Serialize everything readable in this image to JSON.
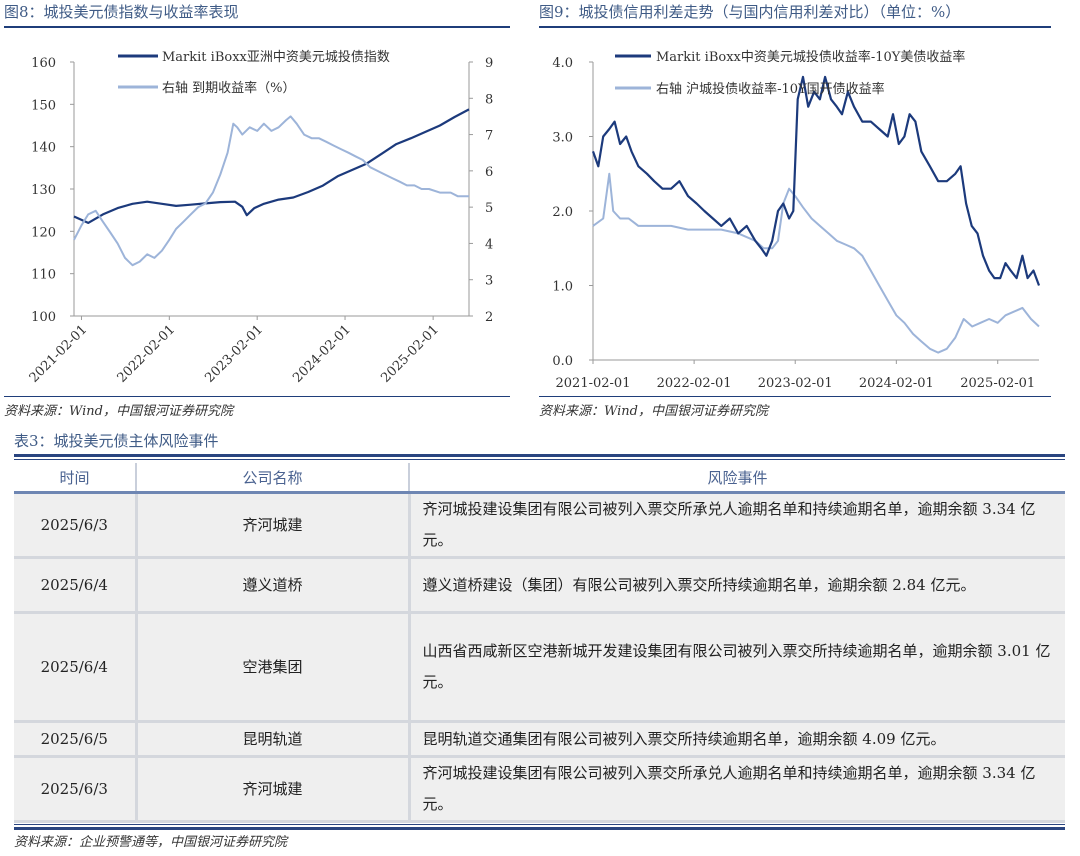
{
  "fig8": {
    "title": "图8：城投美元债指数与收益率表现",
    "source": "资料来源：Wind，中国银河证券研究院"
  },
  "fig9": {
    "title": "图9：城投债信用利差走势（与国内信用利差对比）（单位：%）",
    "source": "资料来源：Wind，中国银河证券研究院"
  },
  "chart_data": [
    {
      "type": "line",
      "x_ticks": [
        "2021-02-01",
        "2022-02-01",
        "2023-02-01",
        "2024-02-01",
        "2025-02-01"
      ],
      "y_left_ticks": [
        "160",
        "150",
        "140",
        "130",
        "120",
        "110",
        "100"
      ],
      "y_right_ticks": [
        "9",
        "8",
        "7",
        "6",
        "5",
        "4",
        "3",
        "2"
      ],
      "ylim_left": [
        100,
        160
      ],
      "ylim_right": [
        2,
        9
      ],
      "x_range": [
        "2021-01-01",
        "2025-06-30"
      ],
      "legend_position": "top-left",
      "grid": false,
      "series": [
        {
          "name": "Markit iBoxx亚洲中资美元城投债指数",
          "axis": "left",
          "color": "#1c3a7c",
          "points": [
            [
              "2021-01-01",
              123.5
            ],
            [
              "2021-03-01",
              122.0
            ],
            [
              "2021-05-01",
              124.0
            ],
            [
              "2021-07-01",
              125.5
            ],
            [
              "2021-09-01",
              126.5
            ],
            [
              "2021-11-01",
              127.0
            ],
            [
              "2022-01-01",
              126.5
            ],
            [
              "2022-03-01",
              126.0
            ],
            [
              "2022-05-01",
              126.3
            ],
            [
              "2022-07-01",
              126.6
            ],
            [
              "2022-09-01",
              126.9
            ],
            [
              "2022-11-01",
              127.0
            ],
            [
              "2022-12-01",
              125.8
            ],
            [
              "2022-12-20",
              123.8
            ],
            [
              "2023-01-20",
              125.5
            ],
            [
              "2023-03-01",
              126.5
            ],
            [
              "2023-05-01",
              127.5
            ],
            [
              "2023-07-01",
              128.0
            ],
            [
              "2023-09-01",
              129.3
            ],
            [
              "2023-11-01",
              130.8
            ],
            [
              "2024-01-01",
              133.0
            ],
            [
              "2024-03-01",
              134.5
            ],
            [
              "2024-05-01",
              136.0
            ],
            [
              "2024-07-01",
              138.3
            ],
            [
              "2024-09-01",
              140.6
            ],
            [
              "2024-11-01",
              142.0
            ],
            [
              "2025-01-01",
              143.5
            ],
            [
              "2025-03-01",
              145.0
            ],
            [
              "2025-05-01",
              147.0
            ],
            [
              "2025-06-30",
              148.8
            ]
          ]
        },
        {
          "name": "右轴 到期收益率（%）",
          "axis": "right",
          "color": "#9db4d9",
          "points": [
            [
              "2021-01-01",
              4.1
            ],
            [
              "2021-02-01",
              4.5
            ],
            [
              "2021-03-01",
              4.8
            ],
            [
              "2021-04-01",
              4.9
            ],
            [
              "2021-05-01",
              4.6
            ],
            [
              "2021-06-01",
              4.3
            ],
            [
              "2021-07-01",
              4.0
            ],
            [
              "2021-08-01",
              3.6
            ],
            [
              "2021-09-01",
              3.4
            ],
            [
              "2021-10-01",
              3.5
            ],
            [
              "2021-11-01",
              3.7
            ],
            [
              "2021-12-01",
              3.6
            ],
            [
              "2022-01-01",
              3.8
            ],
            [
              "2022-02-01",
              4.1
            ],
            [
              "2022-03-01",
              4.4
            ],
            [
              "2022-04-01",
              4.6
            ],
            [
              "2022-05-01",
              4.8
            ],
            [
              "2022-06-01",
              5.0
            ],
            [
              "2022-07-01",
              5.1
            ],
            [
              "2022-08-01",
              5.4
            ],
            [
              "2022-09-01",
              5.9
            ],
            [
              "2022-10-01",
              6.5
            ],
            [
              "2022-10-25",
              7.3
            ],
            [
              "2022-11-10",
              7.2
            ],
            [
              "2022-12-01",
              7.0
            ],
            [
              "2023-01-01",
              7.2
            ],
            [
              "2023-02-01",
              7.1
            ],
            [
              "2023-03-01",
              7.3
            ],
            [
              "2023-04-01",
              7.1
            ],
            [
              "2023-05-01",
              7.2
            ],
            [
              "2023-06-01",
              7.4
            ],
            [
              "2023-06-20",
              7.5
            ],
            [
              "2023-07-15",
              7.3
            ],
            [
              "2023-08-15",
              7.0
            ],
            [
              "2023-09-15",
              6.9
            ],
            [
              "2023-10-15",
              6.9
            ],
            [
              "2023-11-15",
              6.8
            ],
            [
              "2023-12-15",
              6.7
            ],
            [
              "2024-01-15",
              6.6
            ],
            [
              "2024-02-15",
              6.5
            ],
            [
              "2024-03-15",
              6.4
            ],
            [
              "2024-04-15",
              6.3
            ],
            [
              "2024-05-15",
              6.1
            ],
            [
              "2024-06-15",
              6.0
            ],
            [
              "2024-07-15",
              5.9
            ],
            [
              "2024-08-15",
              5.8
            ],
            [
              "2024-09-15",
              5.7
            ],
            [
              "2024-10-15",
              5.6
            ],
            [
              "2024-11-15",
              5.6
            ],
            [
              "2024-12-15",
              5.5
            ],
            [
              "2025-01-15",
              5.5
            ],
            [
              "2025-03-01",
              5.4
            ],
            [
              "2025-04-15",
              5.4
            ],
            [
              "2025-05-15",
              5.3
            ],
            [
              "2025-06-30",
              5.3
            ]
          ]
        }
      ]
    },
    {
      "type": "line",
      "x_ticks": [
        "2021-02-01",
        "2022-02-01",
        "2023-02-01",
        "2024-02-01",
        "2025-02-01"
      ],
      "y_ticks": [
        "4.0",
        "3.0",
        "2.0",
        "1.0",
        "0.0"
      ],
      "ylim": [
        0,
        4
      ],
      "x_range": [
        "2021-02-01",
        "2025-06-30"
      ],
      "legend_position": "top-left",
      "grid": false,
      "series": [
        {
          "name": "Markit iBoxx中资美元城投债收益率-10Y美债收益率",
          "color": "#1c3a7c",
          "points": [
            [
              "2021-02-01",
              2.8
            ],
            [
              "2021-02-20",
              2.6
            ],
            [
              "2021-03-10",
              3.0
            ],
            [
              "2021-04-01",
              3.1
            ],
            [
              "2021-04-20",
              3.2
            ],
            [
              "2021-05-10",
              2.9
            ],
            [
              "2021-06-01",
              3.0
            ],
            [
              "2021-06-20",
              2.8
            ],
            [
              "2021-07-15",
              2.6
            ],
            [
              "2021-08-15",
              2.5
            ],
            [
              "2021-09-10",
              2.4
            ],
            [
              "2021-10-10",
              2.3
            ],
            [
              "2021-11-10",
              2.3
            ],
            [
              "2021-12-10",
              2.4
            ],
            [
              "2022-01-10",
              2.2
            ],
            [
              "2022-02-10",
              2.1
            ],
            [
              "2022-03-10",
              2.0
            ],
            [
              "2022-04-10",
              1.9
            ],
            [
              "2022-05-10",
              1.8
            ],
            [
              "2022-06-10",
              1.9
            ],
            [
              "2022-07-10",
              1.7
            ],
            [
              "2022-08-10",
              1.8
            ],
            [
              "2022-09-10",
              1.6
            ],
            [
              "2022-10-01",
              1.5
            ],
            [
              "2022-10-20",
              1.4
            ],
            [
              "2022-11-10",
              1.6
            ],
            [
              "2022-12-01",
              2.0
            ],
            [
              "2022-12-20",
              2.1
            ],
            [
              "2023-01-10",
              1.9
            ],
            [
              "2023-01-25",
              2.0
            ],
            [
              "2023-02-10",
              3.5
            ],
            [
              "2023-03-01",
              3.8
            ],
            [
              "2023-03-20",
              3.4
            ],
            [
              "2023-04-10",
              3.6
            ],
            [
              "2023-05-01",
              3.5
            ],
            [
              "2023-05-20",
              3.8
            ],
            [
              "2023-06-10",
              3.5
            ],
            [
              "2023-07-01",
              3.4
            ],
            [
              "2023-07-20",
              3.3
            ],
            [
              "2023-08-10",
              3.6
            ],
            [
              "2023-09-01",
              3.4
            ],
            [
              "2023-10-01",
              3.2
            ],
            [
              "2023-11-01",
              3.2
            ],
            [
              "2023-12-01",
              3.1
            ],
            [
              "2024-01-01",
              3.0
            ],
            [
              "2024-01-20",
              3.3
            ],
            [
              "2024-02-10",
              2.9
            ],
            [
              "2024-03-01",
              3.0
            ],
            [
              "2024-03-20",
              3.3
            ],
            [
              "2024-04-10",
              3.2
            ],
            [
              "2024-05-01",
              2.8
            ],
            [
              "2024-06-01",
              2.6
            ],
            [
              "2024-07-01",
              2.4
            ],
            [
              "2024-08-01",
              2.4
            ],
            [
              "2024-09-01",
              2.5
            ],
            [
              "2024-09-20",
              2.6
            ],
            [
              "2024-10-10",
              2.1
            ],
            [
              "2024-10-30",
              1.8
            ],
            [
              "2024-11-20",
              1.7
            ],
            [
              "2024-12-10",
              1.4
            ],
            [
              "2025-01-01",
              1.2
            ],
            [
              "2025-01-20",
              1.1
            ],
            [
              "2025-02-10",
              1.1
            ],
            [
              "2025-03-01",
              1.3
            ],
            [
              "2025-03-20",
              1.2
            ],
            [
              "2025-04-10",
              1.1
            ],
            [
              "2025-05-01",
              1.4
            ],
            [
              "2025-05-20",
              1.1
            ],
            [
              "2025-06-10",
              1.2
            ],
            [
              "2025-06-30",
              1.0
            ]
          ]
        },
        {
          "name": "右轴 沪城投债收益率-10Y国开债收益率",
          "color": "#9db4d9",
          "points": [
            [
              "2021-02-01",
              1.8
            ],
            [
              "2021-03-10",
              1.9
            ],
            [
              "2021-04-01",
              2.5
            ],
            [
              "2021-04-15",
              2.0
            ],
            [
              "2021-05-10",
              1.9
            ],
            [
              "2021-06-10",
              1.9
            ],
            [
              "2021-07-15",
              1.8
            ],
            [
              "2021-09-10",
              1.8
            ],
            [
              "2021-11-10",
              1.8
            ],
            [
              "2022-01-10",
              1.75
            ],
            [
              "2022-03-10",
              1.75
            ],
            [
              "2022-05-10",
              1.75
            ],
            [
              "2022-07-10",
              1.7
            ],
            [
              "2022-09-10",
              1.6
            ],
            [
              "2022-10-10",
              1.5
            ],
            [
              "2022-11-10",
              1.5
            ],
            [
              "2022-12-01",
              1.6
            ],
            [
              "2022-12-20",
              2.1
            ],
            [
              "2023-01-10",
              2.3
            ],
            [
              "2023-02-01",
              2.2
            ],
            [
              "2023-03-01",
              2.05
            ],
            [
              "2023-04-01",
              1.9
            ],
            [
              "2023-05-01",
              1.8
            ],
            [
              "2023-06-01",
              1.7
            ],
            [
              "2023-07-01",
              1.6
            ],
            [
              "2023-08-01",
              1.55
            ],
            [
              "2023-09-01",
              1.5
            ],
            [
              "2023-10-01",
              1.4
            ],
            [
              "2023-11-01",
              1.2
            ],
            [
              "2023-12-01",
              1.0
            ],
            [
              "2024-01-01",
              0.8
            ],
            [
              "2024-02-01",
              0.6
            ],
            [
              "2024-03-01",
              0.5
            ],
            [
              "2024-04-01",
              0.35
            ],
            [
              "2024-05-01",
              0.25
            ],
            [
              "2024-06-01",
              0.15
            ],
            [
              "2024-07-01",
              0.1
            ],
            [
              "2024-08-01",
              0.15
            ],
            [
              "2024-09-01",
              0.3
            ],
            [
              "2024-10-01",
              0.55
            ],
            [
              "2024-11-01",
              0.45
            ],
            [
              "2024-12-01",
              0.5
            ],
            [
              "2025-01-01",
              0.55
            ],
            [
              "2025-02-01",
              0.5
            ],
            [
              "2025-03-01",
              0.6
            ],
            [
              "2025-04-01",
              0.65
            ],
            [
              "2025-05-01",
              0.7
            ],
            [
              "2025-06-01",
              0.55
            ],
            [
              "2025-06-30",
              0.45
            ]
          ]
        }
      ]
    }
  ],
  "table": {
    "title": "表3：城投美元债主体风险事件",
    "headers": [
      "时间",
      "公司名称",
      "风险事件"
    ],
    "rows": [
      {
        "date": "2025/6/3",
        "company": "齐河城建",
        "event": "齐河城投建设集团有限公司被列入票交所承兑人逾期名单和持续逾期名单，逾期余额 3.34 亿元。"
      },
      {
        "date": "2025/6/4",
        "company": "遵义道桥",
        "event": "遵义道桥建设（集团）有限公司被列入票交所持续逾期名单，逾期余额 2.84 亿元。"
      },
      {
        "date": "2025/6/4",
        "company": "空港集团",
        "event": "山西省西咸新区空港新城开发建设集团有限公司被列入票交所持续逾期名单，逾期余额 3.01 亿元。"
      },
      {
        "date": "2025/6/5",
        "company": "昆明轨道",
        "event": "昆明轨道交通集团有限公司被列入票交所持续逾期名单，逾期余额 4.09 亿元。"
      },
      {
        "date": "2025/6/3",
        "company": "齐河城建",
        "event": "齐河城投建设集团有限公司被列入票交所承兑人逾期名单和持续逾期名单，逾期余额 3.34 亿元。"
      }
    ],
    "source": "资料来源：企业预警通等，中国银河证券研究院"
  }
}
